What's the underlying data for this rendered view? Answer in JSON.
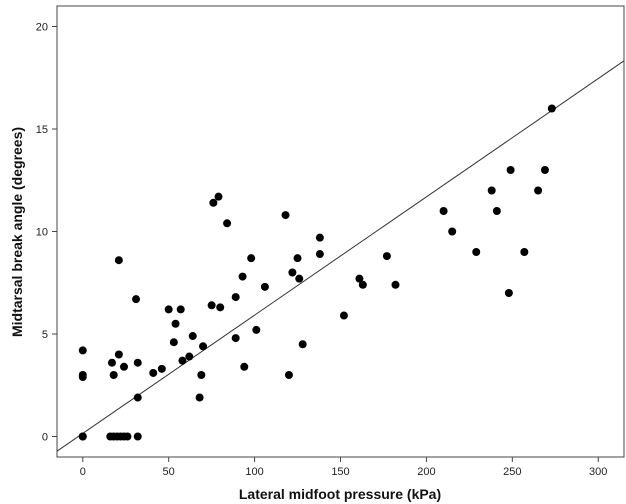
{
  "chart_data": {
    "type": "scatter",
    "title": "",
    "xlabel": "Lateral midfoot pressure (kPa)",
    "ylabel": "Midtarsal break angle (degrees)",
    "xlim": [
      -15,
      315
    ],
    "ylim": [
      -1,
      21
    ],
    "xticks": [
      0,
      50,
      100,
      150,
      200,
      250,
      300
    ],
    "yticks": [
      0,
      5,
      10,
      15,
      20
    ],
    "grid": false,
    "legend": "none",
    "point_color": "#000000",
    "line_color": "#333333",
    "fit_line": {
      "intercept": 0.15,
      "slope": 0.0577
    },
    "points": [
      [
        0,
        4.2
      ],
      [
        0,
        3.0
      ],
      [
        0,
        2.9
      ],
      [
        0,
        0
      ],
      [
        0,
        0
      ],
      [
        16,
        0
      ],
      [
        18,
        0
      ],
      [
        20,
        0
      ],
      [
        22,
        0
      ],
      [
        24,
        0
      ],
      [
        26,
        0
      ],
      [
        32,
        0
      ],
      [
        17,
        3.6
      ],
      [
        18,
        3.0
      ],
      [
        21,
        4.0
      ],
      [
        21,
        8.6
      ],
      [
        24,
        3.4
      ],
      [
        31,
        6.7
      ],
      [
        32,
        3.6
      ],
      [
        32,
        1.9
      ],
      [
        41,
        3.1
      ],
      [
        46,
        3.3
      ],
      [
        50,
        6.2
      ],
      [
        53,
        4.6
      ],
      [
        54,
        5.5
      ],
      [
        57,
        6.2
      ],
      [
        58,
        3.7
      ],
      [
        62,
        3.9
      ],
      [
        64,
        4.9
      ],
      [
        68,
        1.9
      ],
      [
        69,
        3.0
      ],
      [
        70,
        4.4
      ],
      [
        75,
        6.4
      ],
      [
        76,
        11.4
      ],
      [
        79,
        11.7
      ],
      [
        80,
        6.3
      ],
      [
        84,
        10.4
      ],
      [
        89,
        6.8
      ],
      [
        89,
        4.8
      ],
      [
        93,
        7.8
      ],
      [
        94,
        3.4
      ],
      [
        98,
        8.7
      ],
      [
        101,
        5.2
      ],
      [
        106,
        7.3
      ],
      [
        118,
        10.8
      ],
      [
        120,
        3.0
      ],
      [
        122,
        8.0
      ],
      [
        125,
        8.7
      ],
      [
        126,
        7.7
      ],
      [
        128,
        4.5
      ],
      [
        138,
        9.7
      ],
      [
        138,
        8.9
      ],
      [
        152,
        5.9
      ],
      [
        161,
        7.7
      ],
      [
        163,
        7.4
      ],
      [
        177,
        8.8
      ],
      [
        182,
        7.4
      ],
      [
        210,
        11.0
      ],
      [
        215,
        10.0
      ],
      [
        229,
        9.0
      ],
      [
        238,
        12.0
      ],
      [
        241,
        11.0
      ],
      [
        248,
        7.0
      ],
      [
        249,
        13.0
      ],
      [
        257,
        9.0
      ],
      [
        265,
        12.0
      ],
      [
        269,
        13.0
      ],
      [
        273,
        16.0
      ]
    ]
  }
}
